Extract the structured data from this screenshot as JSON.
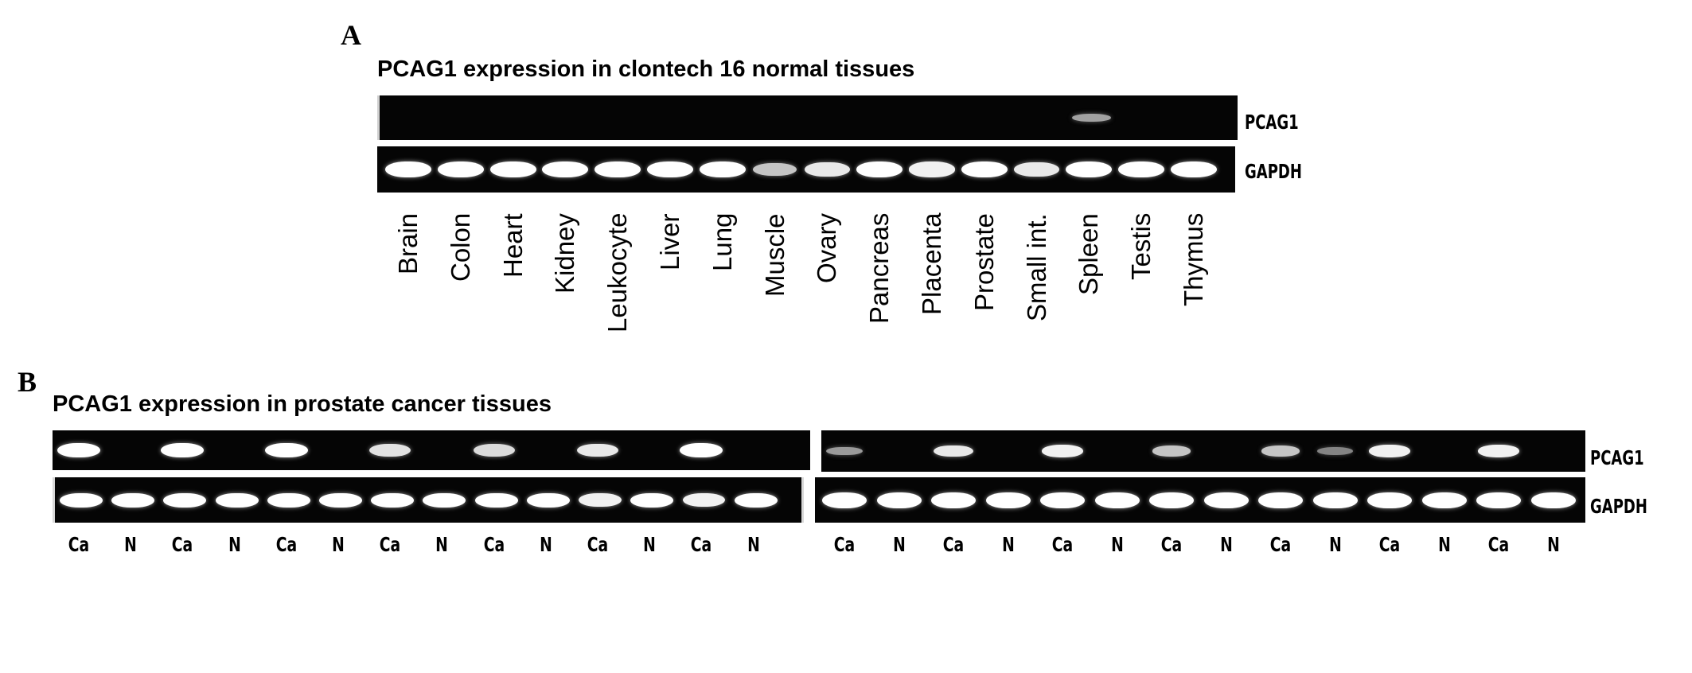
{
  "panel_a": {
    "letter": "A",
    "title": "PCAG1 expression in clontech 16 normal tissues",
    "gene_top": "PCAG1",
    "gene_bottom": "GAPDH",
    "lanes": [
      "Brain",
      "Colon",
      "Heart",
      "Kidney",
      "Leukocyte",
      "Liver",
      "Lung",
      "Muscle",
      "Ovary",
      "Pancreas",
      "Placenta",
      "Prostate",
      "Small int.",
      "Spleen",
      "Testis",
      "Thymus"
    ],
    "pcag1_intensity": [
      0,
      0,
      0,
      0,
      0,
      0,
      0,
      0,
      0,
      0,
      0,
      0,
      0,
      0.35,
      0,
      0
    ],
    "gapdh_intensity": [
      1,
      1,
      1,
      1,
      1,
      1,
      1,
      0.6,
      0.85,
      1,
      0.9,
      1,
      0.85,
      1,
      1,
      1
    ]
  },
  "panel_b": {
    "letter": "B",
    "title": "PCAG1 expression in prostate cancer tissues",
    "gene_top": "PCAG1",
    "gene_bottom": "GAPDH",
    "left_gel": {
      "lanes": [
        "Ca",
        "N",
        "Ca",
        "N",
        "Ca",
        "N",
        "Ca",
        "N",
        "Ca",
        "N",
        "Ca",
        "N",
        "Ca",
        "N"
      ],
      "pcag1_intensity": [
        1,
        0,
        1,
        0,
        1,
        0,
        0.8,
        0,
        0.75,
        0,
        0.85,
        0,
        1,
        0
      ],
      "gapdh_intensity": [
        1,
        1,
        1,
        1,
        1,
        1,
        1,
        1,
        1,
        1,
        0.9,
        1,
        0.9,
        1
      ]
    },
    "right_gel": {
      "lanes": [
        "Ca",
        "N",
        "Ca",
        "N",
        "Ca",
        "N",
        "Ca",
        "N",
        "Ca",
        "N",
        "Ca",
        "N",
        "Ca",
        "N"
      ],
      "pcag1_intensity": [
        0.3,
        0,
        0.85,
        0,
        0.9,
        0,
        0.6,
        0,
        0.6,
        0.15,
        0.9,
        0,
        0.9,
        0
      ],
      "gapdh_intensity": [
        1,
        1,
        1,
        1,
        1,
        1,
        1,
        1,
        1,
        1,
        1,
        1,
        1,
        1
      ]
    }
  }
}
